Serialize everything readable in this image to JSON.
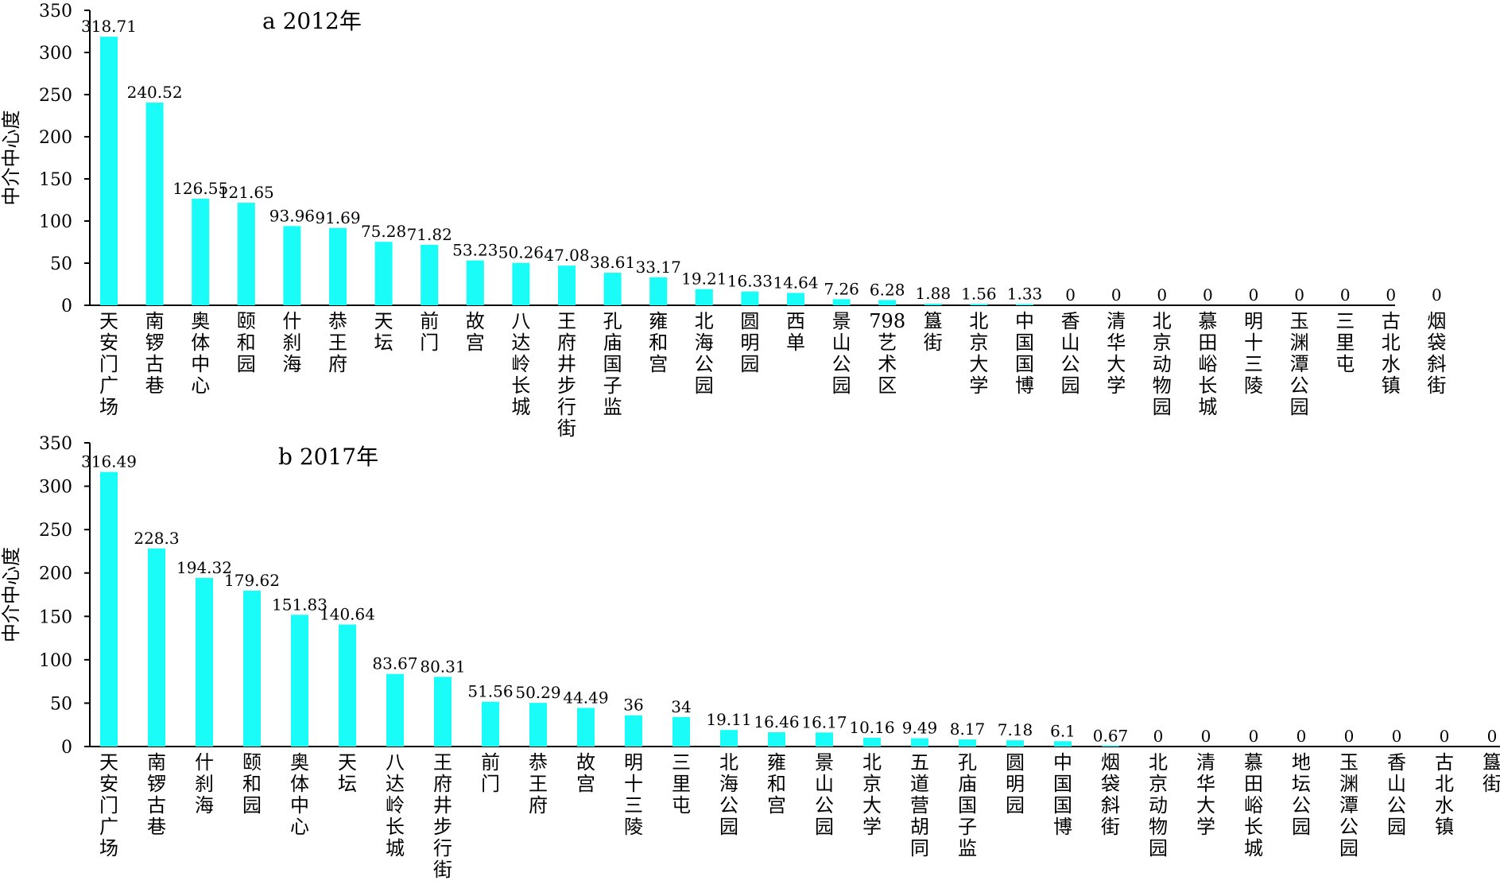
{
  "chart_data": [
    {
      "type": "bar",
      "title": "a  2012年",
      "ylabel": "中介中心度",
      "xlabel": "",
      "ylim": [
        0,
        350
      ],
      "yticks": [
        0,
        50,
        100,
        150,
        200,
        250,
        300,
        350
      ],
      "grid": false,
      "bar_color": "#1AFCF8",
      "categories": [
        "天安门广场",
        "南锣古巷",
        "奥体中心",
        "颐和园",
        "什刹海",
        "恭王府",
        "天坛",
        "前门",
        "故宫",
        "八达岭长城",
        "王府井步行街",
        "孔庙国子监",
        "雍和宫",
        "北海公园",
        "圆明园",
        "西单",
        "景山公园",
        "798艺术区",
        "簋街",
        "北京大学",
        "中国国博",
        "香山公园",
        "清华大学",
        "北京动物园",
        "慕田峪长城",
        "明十三陵",
        "玉渊潭公园",
        "三里屯",
        "古北水镇",
        "烟袋斜街"
      ],
      "values": [
        318.71,
        240.52,
        126.55,
        121.65,
        93.96,
        91.69,
        75.28,
        71.82,
        53.23,
        50.26,
        47.08,
        38.61,
        33.17,
        19.21,
        16.33,
        14.64,
        7.26,
        6.28,
        1.88,
        1.56,
        1.33,
        0,
        0,
        0,
        0,
        0,
        0,
        0,
        0,
        0
      ],
      "value_labels": [
        "318.71",
        "240.52",
        "126.55",
        "121.65",
        "93.96",
        "91.69",
        "75.28",
        "71.82",
        "53.23",
        "50.26",
        "47.08",
        "38.61",
        "33.17",
        "19.21",
        "16.33",
        "14.64",
        "7.26",
        "6.28",
        "1.88",
        "1.56",
        "1.33",
        "0",
        "0",
        "0",
        "0",
        "0",
        "0",
        "0",
        "0",
        "0"
      ]
    },
    {
      "type": "bar",
      "title": "b  2017年",
      "ylabel": "中介中心度",
      "xlabel": "",
      "ylim": [
        0,
        350
      ],
      "yticks": [
        0,
        50,
        100,
        150,
        200,
        250,
        300,
        350
      ],
      "grid": false,
      "bar_color": "#1AFCF8",
      "categories": [
        "天安门广场",
        "南锣古巷",
        "什刹海",
        "颐和园",
        "奥体中心",
        "天坛",
        "八达岭长城",
        "王府井步行街",
        "前门",
        "恭王府",
        "故宫",
        "明十三陵",
        "三里屯",
        "北海公园",
        "雍和宫",
        "景山公园",
        "北京大学",
        "五道营胡同",
        "孔庙国子监",
        "圆明园",
        "中国国博",
        "烟袋斜街",
        "北京动物园",
        "清华大学",
        "慕田峪长城",
        "地坛公园",
        "玉渊潭公园",
        "香山公园",
        "古北水镇",
        "簋街"
      ],
      "values": [
        316.49,
        228.3,
        194.32,
        179.62,
        151.83,
        140.64,
        83.67,
        80.31,
        51.56,
        50.29,
        44.49,
        36,
        34,
        19.11,
        16.46,
        16.17,
        10.16,
        9.49,
        8.17,
        7.18,
        6.1,
        0.67,
        0,
        0,
        0,
        0,
        0,
        0,
        0,
        0
      ],
      "value_labels": [
        "316.49",
        "228.3",
        "194.32",
        "179.62",
        "151.83",
        "140.64",
        "83.67",
        "80.31",
        "51.56",
        "50.29",
        "44.49",
        "36",
        "34",
        "19.11",
        "16.46",
        "16.17",
        "10.16",
        "9.49",
        "8.17",
        "7.18",
        "6.1",
        "0.67",
        "0",
        "0",
        "0",
        "0",
        "0",
        "0",
        "0",
        "0"
      ]
    }
  ]
}
